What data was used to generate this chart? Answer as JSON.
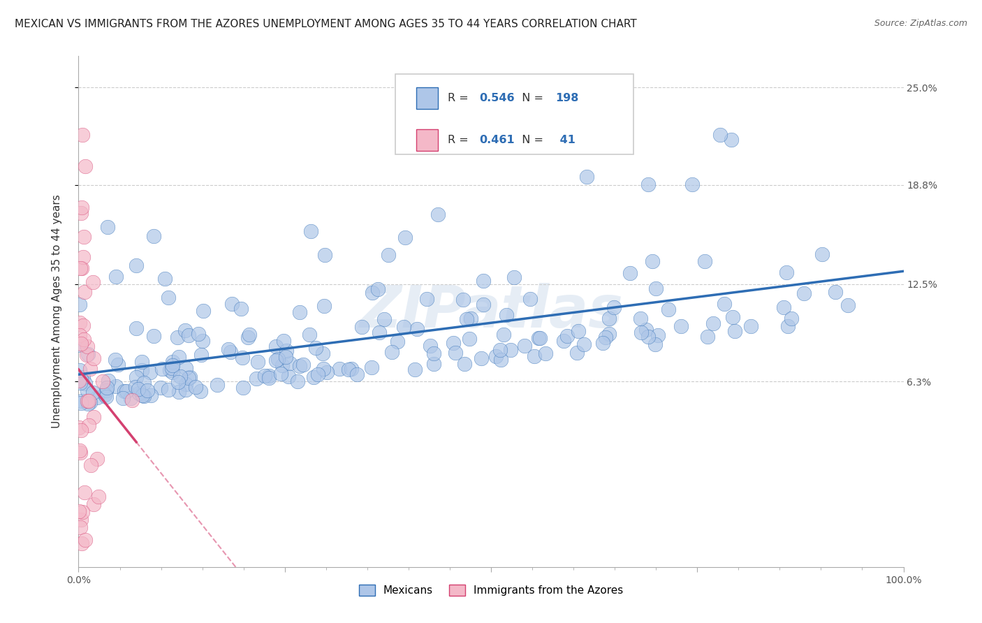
{
  "title": "MEXICAN VS IMMIGRANTS FROM THE AZORES UNEMPLOYMENT AMONG AGES 35 TO 44 YEARS CORRELATION CHART",
  "source": "Source: ZipAtlas.com",
  "ylabel": "Unemployment Among Ages 35 to 44 years",
  "xlabel": "",
  "xlim": [
    0,
    1.0
  ],
  "ylim": [
    -0.055,
    0.27
  ],
  "yticks": [
    0.063,
    0.125,
    0.188,
    0.25
  ],
  "ytick_labels": [
    "6.3%",
    "12.5%",
    "18.8%",
    "25.0%"
  ],
  "xticks": [
    0.0,
    0.25,
    0.5,
    0.75,
    1.0
  ],
  "xtick_labels": [
    "0.0%",
    "",
    "",
    "",
    "100.0%"
  ],
  "blue_color": "#aec6e8",
  "pink_color": "#f4b8c8",
  "blue_line_color": "#2e6db4",
  "pink_line_color": "#d44070",
  "blue_R": 0.546,
  "blue_N": 198,
  "pink_R": 0.461,
  "pink_N": 41,
  "watermark": "ZIPatlas",
  "legend_mexicans": "Mexicans",
  "legend_azores": "Immigrants from the Azores",
  "title_fontsize": 11,
  "axis_label_fontsize": 11,
  "tick_fontsize": 10,
  "seed": 42
}
